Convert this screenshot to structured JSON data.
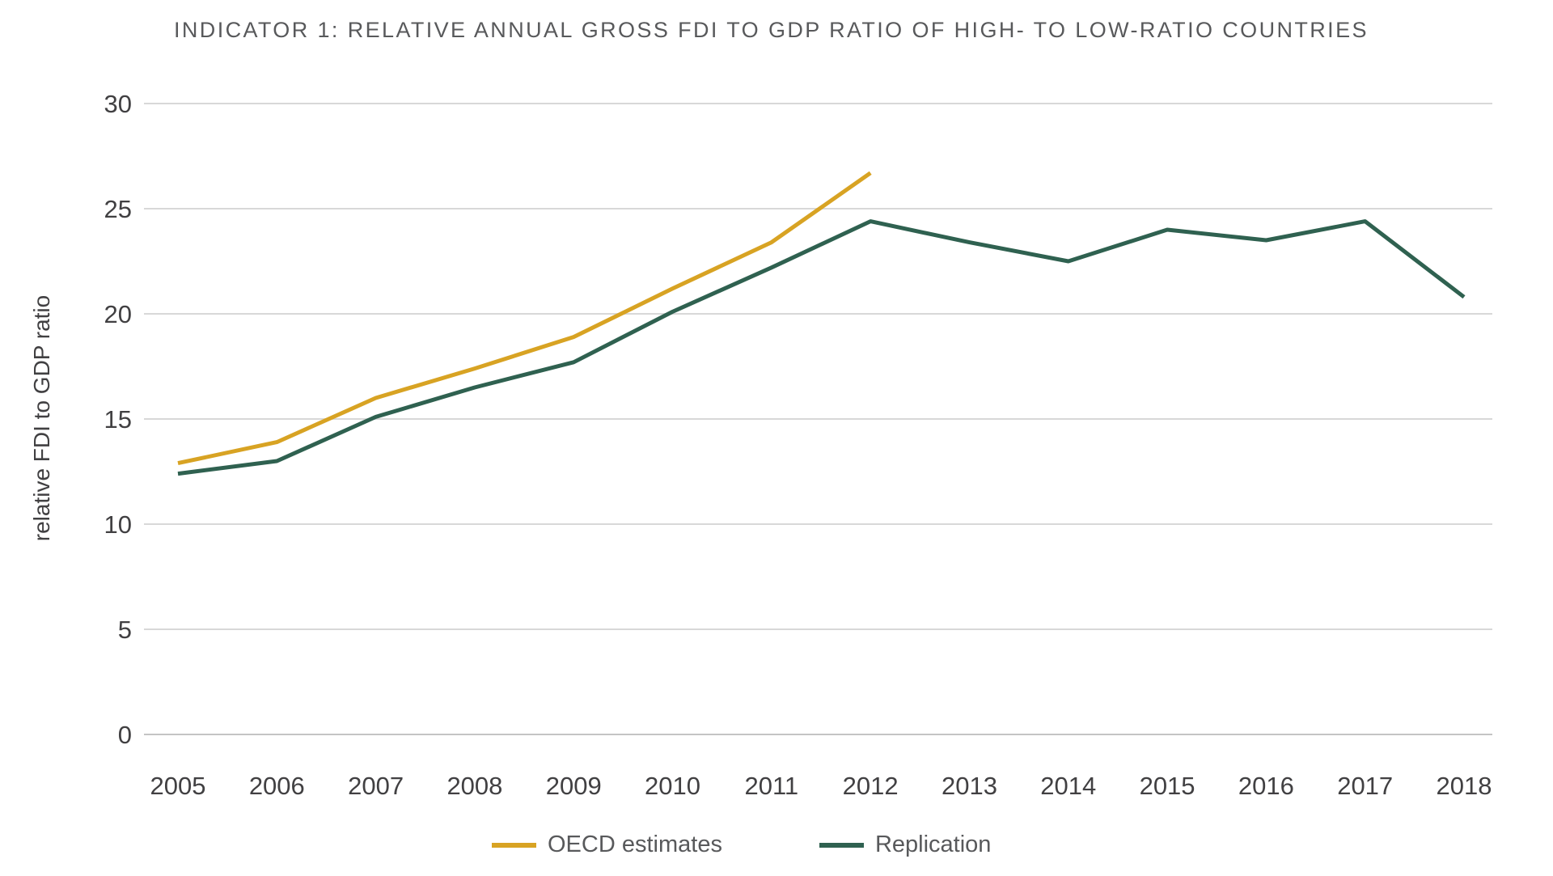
{
  "page": {
    "background": "#ffffff"
  },
  "header": {
    "title": "INDICATOR 1: RELATIVE ANNUAL GROSS FDI TO GDP RATIO OF HIGH- TO LOW-RATIO COUNTRIES"
  },
  "colors": {
    "oecd_line": "#d8a323",
    "replication_line": "#2f6150",
    "gridline": "#d8d8d8",
    "zero_line": "#c4c4c4",
    "title_text": "#58595b",
    "tick_text": "#414042",
    "legend_text": "#58595b"
  },
  "chart_data": {
    "type": "line",
    "title": "INDICATOR 1: RELATIVE ANNUAL GROSS FDI TO GDP RATIO OF HIGH- TO LOW-RATIO COUNTRIES",
    "xlabel": "",
    "ylabel": "relative FDI to GDP ratio",
    "ylim": [
      0,
      30
    ],
    "yticks": [
      0,
      5,
      10,
      15,
      20,
      25,
      30
    ],
    "grid": "horizontal",
    "legend_position": "bottom",
    "categories": [
      "2005",
      "2006",
      "2007",
      "2008",
      "2009",
      "2010",
      "2011",
      "2012",
      "2013",
      "2014",
      "2015",
      "2016",
      "2017",
      "2018"
    ],
    "series": [
      {
        "name": "OECD estimates",
        "color": "#d8a323",
        "values": [
          12.9,
          13.9,
          16.0,
          17.4,
          18.9,
          21.2,
          23.4,
          26.7
        ]
      },
      {
        "name": "Replication",
        "color": "#2f6150",
        "values": [
          12.4,
          13.0,
          15.1,
          16.5,
          17.7,
          20.1,
          22.2,
          24.4,
          23.4,
          22.5,
          24.0,
          23.5,
          24.4,
          20.8
        ]
      }
    ]
  }
}
